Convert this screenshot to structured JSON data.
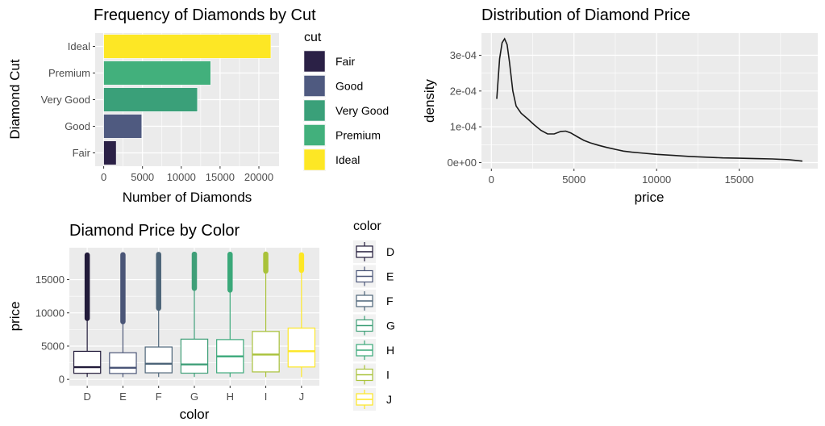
{
  "chart_data": [
    {
      "id": "cut",
      "type": "bar",
      "orientation": "horizontal",
      "title": "Frequency of Diamonds by Cut",
      "xlabel": "Number of Diamonds",
      "ylabel": "Diamond Cut",
      "categories": [
        "Fair",
        "Good",
        "Very Good",
        "Premium",
        "Ideal"
      ],
      "values": [
        1610,
        4906,
        12082,
        13791,
        21551
      ],
      "colors": [
        "#2b2146",
        "#4f5a80",
        "#3aa079",
        "#42b07c",
        "#fde725"
      ],
      "xlim": [
        -1100,
        22600
      ],
      "xticks": [
        0,
        5000,
        10000,
        15000,
        20000
      ],
      "xtick_labels": [
        "0",
        "5000",
        "10000",
        "15000",
        "20000"
      ],
      "grid": true,
      "legend": {
        "title": "cut",
        "position": "right",
        "entries": [
          "Fair",
          "Good",
          "Very Good",
          "Premium",
          "Ideal"
        ]
      }
    },
    {
      "id": "density",
      "type": "line",
      "title": "Distribution of Diamond Price",
      "xlabel": "price",
      "ylabel": "density",
      "x": [
        326,
        500,
        650,
        800,
        950,
        1100,
        1300,
        1500,
        1800,
        2200,
        2600,
        3000,
        3400,
        3800,
        4200,
        4500,
        4800,
        5200,
        5600,
        6000,
        6500,
        7000,
        7500,
        8000,
        8500,
        9000,
        10000,
        11000,
        12000,
        13000,
        14000,
        15000,
        16000,
        17000,
        18000,
        18823
      ],
      "y": [
        0.000178,
        0.00029,
        0.000335,
        0.000346,
        0.00033,
        0.00028,
        0.0002,
        0.000158,
        0.000138,
        0.000122,
        0.000105,
        9e-05,
        8e-05,
        8e-05,
        8.7e-05,
        8.8e-05,
        8.3e-05,
        7.2e-05,
        6.2e-05,
        5.5e-05,
        4.8e-05,
        4.2e-05,
        3.7e-05,
        3.2e-05,
        2.9e-05,
        2.7e-05,
        2.3e-05,
        2e-05,
        1.7e-05,
        1.5e-05,
        1.3e-05,
        1.2e-05,
        1.1e-05,
        1e-05,
        8e-06,
        4e-06
      ],
      "xlim": [
        -600,
        19750
      ],
      "ylim": [
        -1.7e-05,
        0.000362
      ],
      "xticks": [
        0,
        5000,
        10000,
        15000
      ],
      "xtick_labels": [
        "0",
        "5000",
        "10000",
        "15000"
      ],
      "yticks": [
        0,
        0.0001,
        0.0002,
        0.0003
      ],
      "ytick_labels": [
        "0e+00",
        "1e-04",
        "2e-04",
        "3e-04"
      ],
      "line_color": "#1a1a1a",
      "grid": true
    },
    {
      "id": "boxplot",
      "type": "box",
      "title": "Diamond Price by Color",
      "xlabel": "color",
      "ylabel": "price",
      "categories": [
        "D",
        "E",
        "F",
        "G",
        "H",
        "I",
        "J"
      ],
      "boxes": [
        {
          "q1": 911,
          "median": 1838,
          "q3": 4214,
          "whisker_low": 357,
          "whisker_high": 9170,
          "max": 18693
        },
        {
          "q1": 882,
          "median": 1739,
          "q3": 4003,
          "whisker_low": 326,
          "whisker_high": 8680,
          "max": 18731
        },
        {
          "q1": 982,
          "median": 2344,
          "q3": 4868,
          "whisker_low": 342,
          "whisker_high": 10700,
          "max": 18791
        },
        {
          "q1": 931,
          "median": 2242,
          "q3": 6048,
          "whisker_low": 354,
          "whisker_high": 13700,
          "max": 18818
        },
        {
          "q1": 984,
          "median": 3460,
          "q3": 5980,
          "whisker_low": 337,
          "whisker_high": 13440,
          "max": 18803
        },
        {
          "q1": 1120,
          "median": 3730,
          "q3": 7202,
          "whisker_low": 334,
          "whisker_high": 16290,
          "max": 18823
        },
        {
          "q1": 1860,
          "median": 4234,
          "q3": 7695,
          "whisker_low": 335,
          "whisker_high": 16400,
          "max": 18710
        }
      ],
      "colors": [
        "#221b3a",
        "#4a5577",
        "#4c6478",
        "#3f9f78",
        "#3aa879",
        "#a9c23a",
        "#fde725"
      ],
      "ylim": [
        -950,
        19800
      ],
      "yticks": [
        0,
        5000,
        10000,
        15000
      ],
      "ytick_labels": [
        "0",
        "5000",
        "10000",
        "15000"
      ],
      "grid": true,
      "legend": {
        "title": "color",
        "position": "right",
        "entries": [
          "D",
          "E",
          "F",
          "G",
          "H",
          "I",
          "J"
        ]
      }
    }
  ]
}
